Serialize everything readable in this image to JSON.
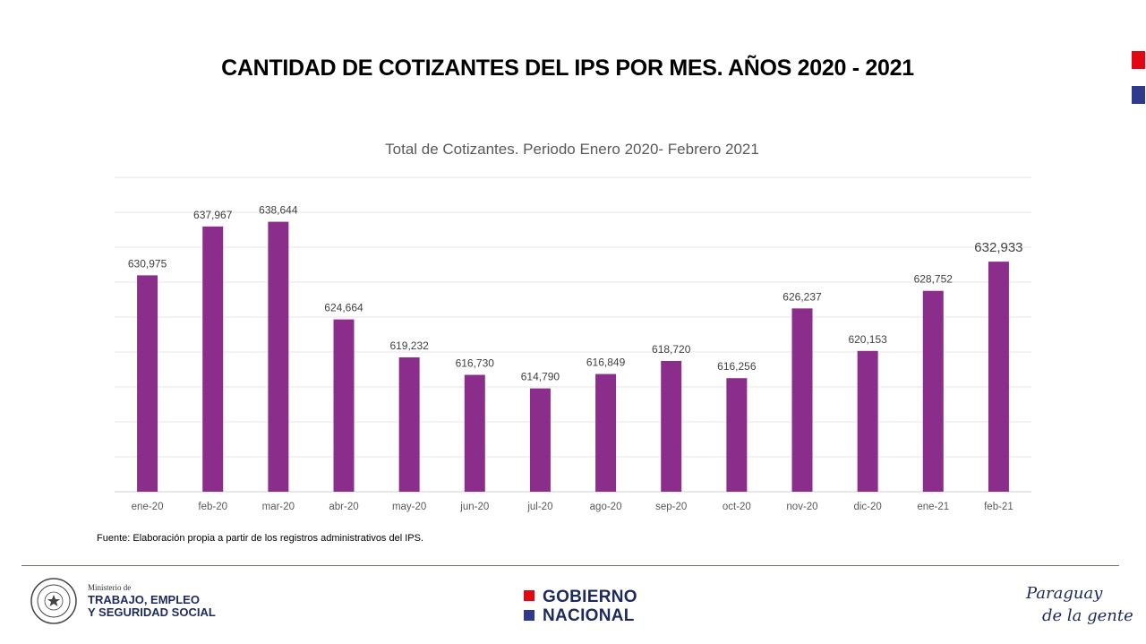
{
  "slide": {
    "title": "CANTIDAD DE COTIZANTES DEL IPS POR MES.  AÑOS 2020  - 2021",
    "source": "Fuente: Elaboración propia a partir de los registros administrativos del IPS.",
    "accent_colors": {
      "flag_red": "#e30613",
      "flag_blue": "#2e3a8c"
    }
  },
  "chart_data": {
    "type": "bar",
    "title": "Total de Cotizantes. Periodo Enero 2020- Febrero 2021",
    "xlabel": "",
    "ylabel": "",
    "categories": [
      "ene-20",
      "feb-20",
      "mar-20",
      "abr-20",
      "may-20",
      "jun-20",
      "jul-20",
      "ago-20",
      "sep-20",
      "oct-20",
      "nov-20",
      "dic-20",
      "ene-21",
      "feb-21"
    ],
    "values": [
      630975,
      637967,
      638644,
      624664,
      619232,
      616730,
      614790,
      616849,
      618720,
      616256,
      626237,
      620153,
      628752,
      632933
    ],
    "data_labels": [
      "630,975",
      "637,967",
      "638,644",
      "624,664",
      "619,232",
      "616,730",
      "614,790",
      "616,849",
      "618,720",
      "616,256",
      "626,237",
      "620,153",
      "628,752",
      "632,933"
    ],
    "ylim": [
      600000,
      645000
    ],
    "grid": true,
    "bar_color": "#8b2e8b",
    "legend": "none"
  },
  "footer": {
    "ministry_small": "Ministerio de",
    "ministry_line1": "TRABAJO, EMPLEO",
    "ministry_line2": "Y SEGURIDAD SOCIAL",
    "seal_icon": "national-seal-icon",
    "gob_line1": "GOBIERNO",
    "gob_line2": "NACIONAL",
    "brand_line1": "Paraguay",
    "brand_line2": "de la gente"
  }
}
